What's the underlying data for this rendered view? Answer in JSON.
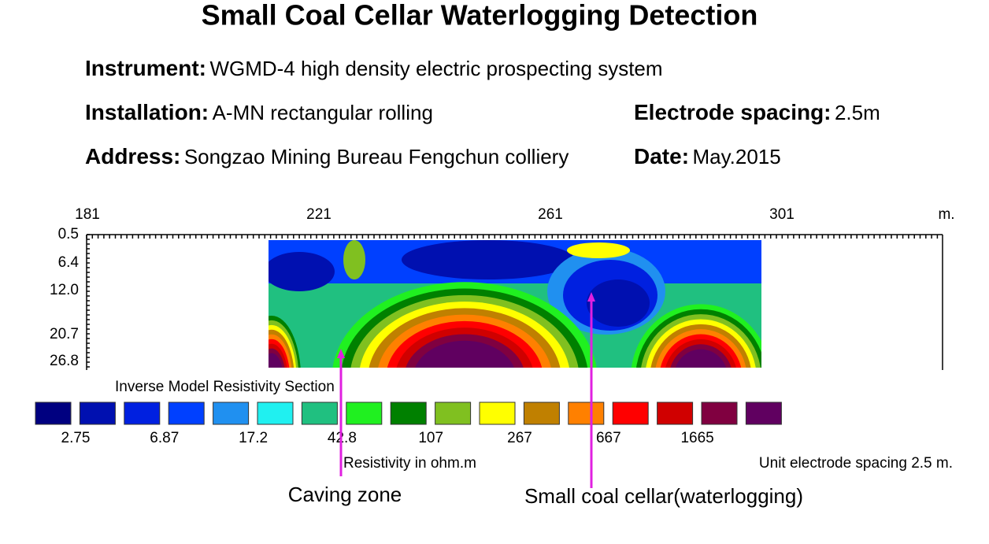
{
  "header": {
    "title": "Small Coal Cellar Waterlogging Detection"
  },
  "info": {
    "instrument": {
      "label": "Instrument:",
      "value": "WGMD-4 high density electric prospecting system"
    },
    "installation": {
      "label": "Installation:",
      "value": "A-MN rectangular rolling"
    },
    "spacing": {
      "label": "Electrode spacing:",
      "value": "2.5m"
    },
    "address": {
      "label": "Address:",
      "value": "Songzao Mining Bureau Fengchun colliery"
    },
    "date": {
      "label": "Date:",
      "value": "May.2015"
    }
  },
  "section": {
    "x_ticks": [
      "181",
      "221",
      "261",
      "301"
    ],
    "x_unit": "m.",
    "depth_ticks": [
      "0.5",
      "6.4",
      "12.0",
      "20.7",
      "26.8"
    ],
    "title": "Inverse Model Resistivity Section"
  },
  "legend": {
    "colors": [
      "#000080",
      "#0010b0",
      "#0020e0",
      "#0040ff",
      "#2090f0",
      "#20f0f0",
      "#20c080",
      "#20f020",
      "#008000",
      "#80c020",
      "#ffff00",
      "#c08000",
      "#ff8000",
      "#ff0000",
      "#d00000",
      "#800040",
      "#600060"
    ],
    "labels": [
      "2.75",
      "6.87",
      "17.2",
      "42.8",
      "107",
      "267",
      "667",
      "1665"
    ],
    "caption": "Resistivity in ohm.m",
    "unit_caption": "Unit electrode spacing 2.5 m."
  },
  "annotations": {
    "caving": "Caving zone",
    "cellar": "Small coal cellar(waterlogging)"
  }
}
